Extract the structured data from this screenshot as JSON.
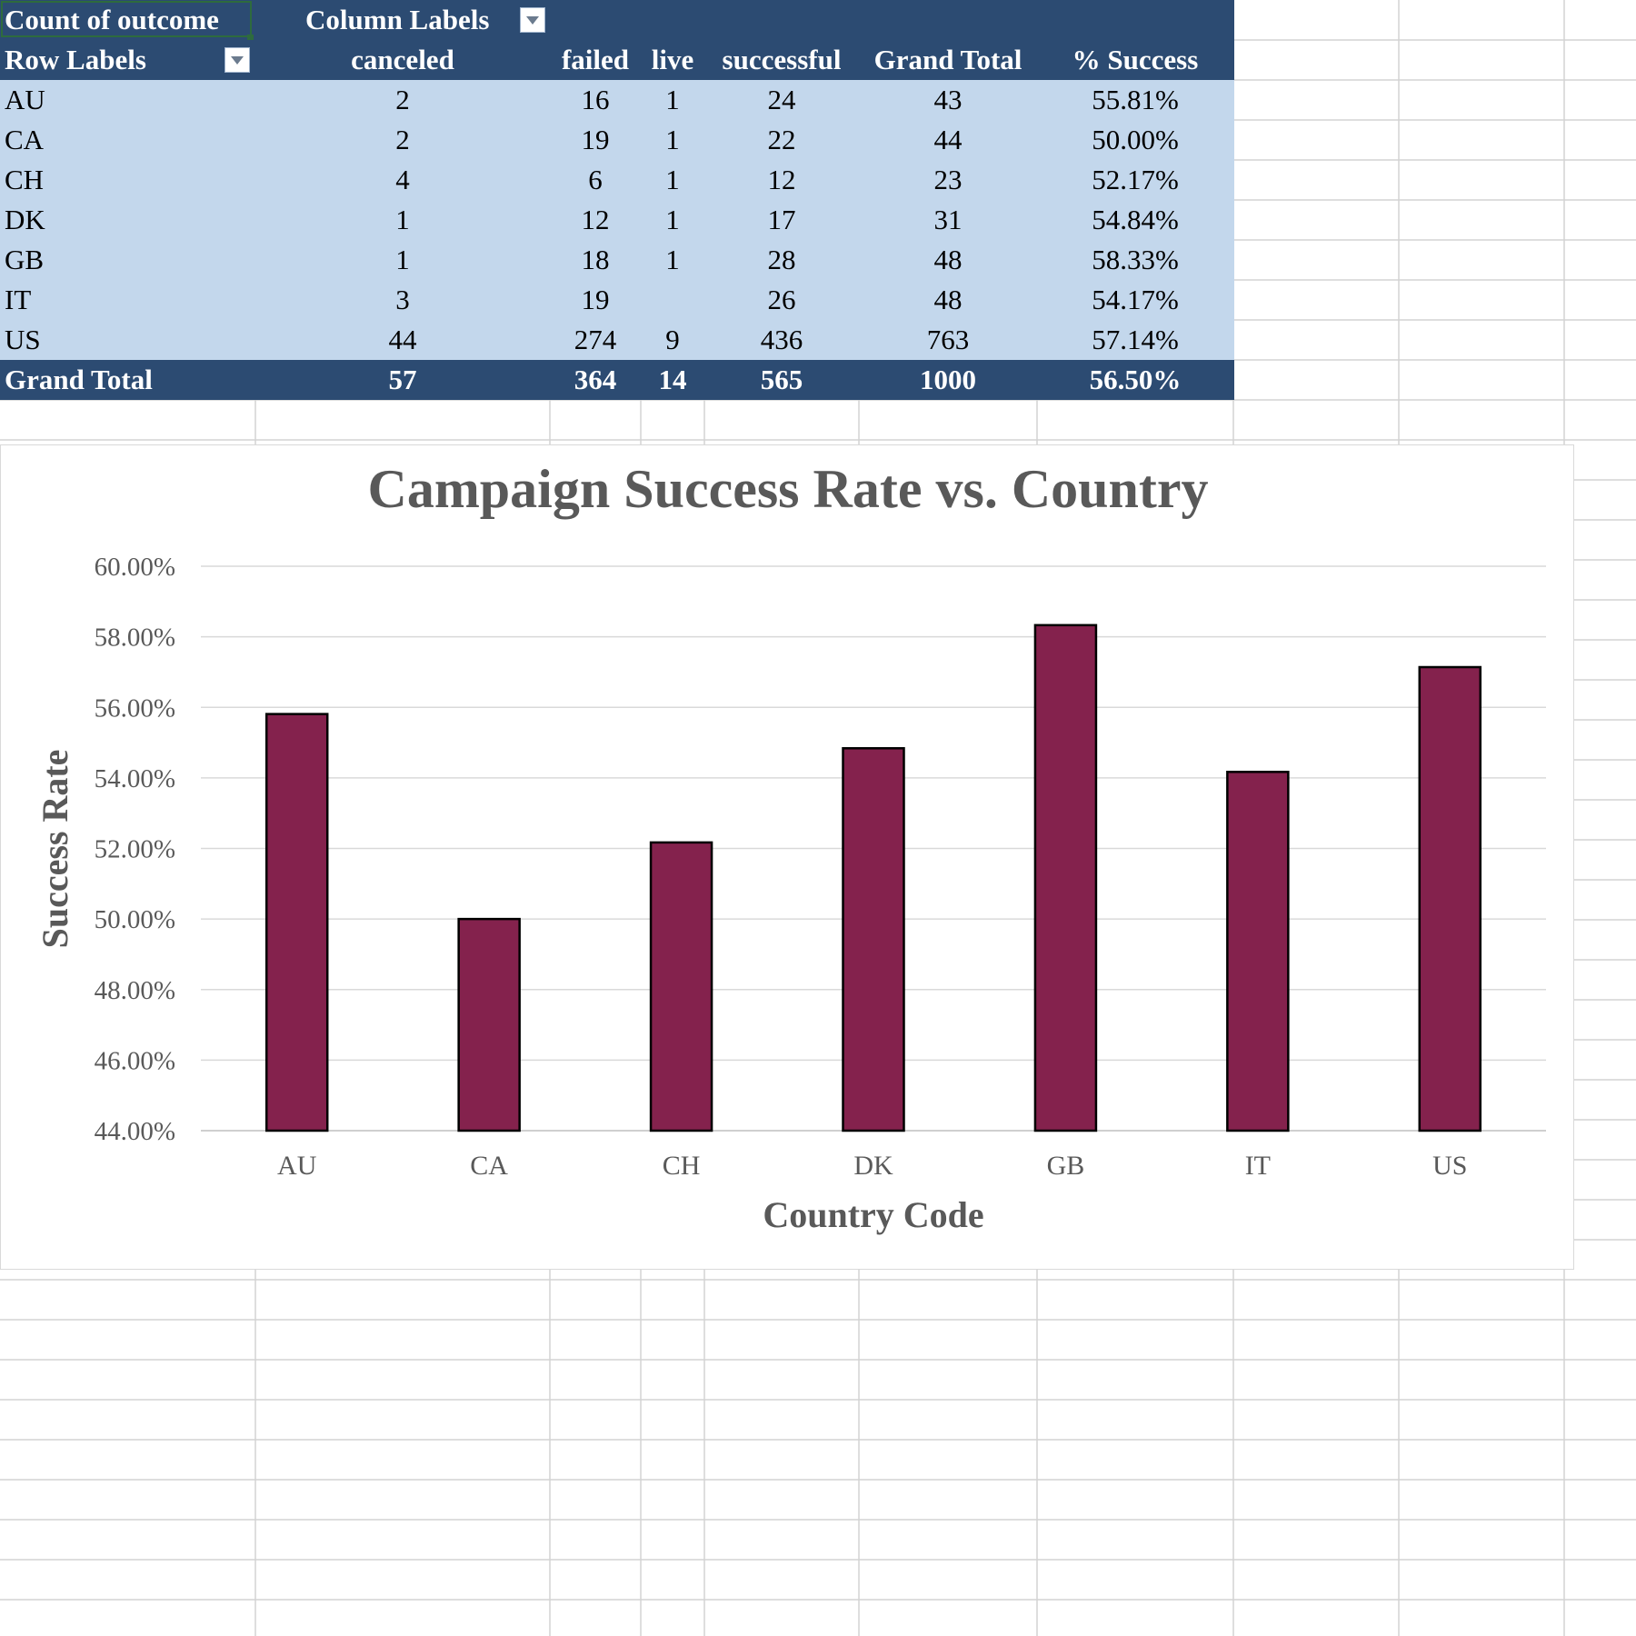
{
  "pivot": {
    "corner_label": "Count of outcome",
    "column_labels": "Column Labels",
    "row_labels": "Row Labels",
    "columns": [
      "canceled",
      "failed",
      "live",
      "successful",
      "Grand Total",
      "% Success"
    ],
    "rows": [
      {
        "label": "AU",
        "values": [
          "2",
          "16",
          "1",
          "24",
          "43",
          "55.81%"
        ]
      },
      {
        "label": "CA",
        "values": [
          "2",
          "19",
          "1",
          "22",
          "44",
          "50.00%"
        ]
      },
      {
        "label": "CH",
        "values": [
          "4",
          "6",
          "1",
          "12",
          "23",
          "52.17%"
        ]
      },
      {
        "label": "DK",
        "values": [
          "1",
          "12",
          "1",
          "17",
          "31",
          "54.84%"
        ]
      },
      {
        "label": "GB",
        "values": [
          "1",
          "18",
          "1",
          "28",
          "48",
          "58.33%"
        ]
      },
      {
        "label": "IT",
        "values": [
          "3",
          "19",
          "",
          "26",
          "48",
          "54.17%"
        ]
      },
      {
        "label": "US",
        "values": [
          "44",
          "274",
          "9",
          "436",
          "763",
          "57.14%"
        ]
      }
    ],
    "grand_total": {
      "label": "Grand Total",
      "values": [
        "57",
        "364",
        "14",
        "565",
        "1000",
        "56.50%"
      ]
    },
    "colors": {
      "header": "#2c4b72",
      "body": "#c3d7ec"
    }
  },
  "chart_data": {
    "type": "bar",
    "title": "Campaign Success Rate vs. Country",
    "xlabel": "Country Code",
    "ylabel": "Success Rate",
    "categories": [
      "AU",
      "CA",
      "CH",
      "DK",
      "GB",
      "IT",
      "US"
    ],
    "values": [
      55.81,
      50.0,
      52.17,
      54.84,
      58.33,
      54.17,
      57.14
    ],
    "ylim": [
      44,
      60
    ],
    "yticks": [
      "44.00%",
      "46.00%",
      "48.00%",
      "50.00%",
      "52.00%",
      "54.00%",
      "56.00%",
      "58.00%",
      "60.00%"
    ],
    "grid": true,
    "legend": "none",
    "bar_color": "#84224d"
  }
}
